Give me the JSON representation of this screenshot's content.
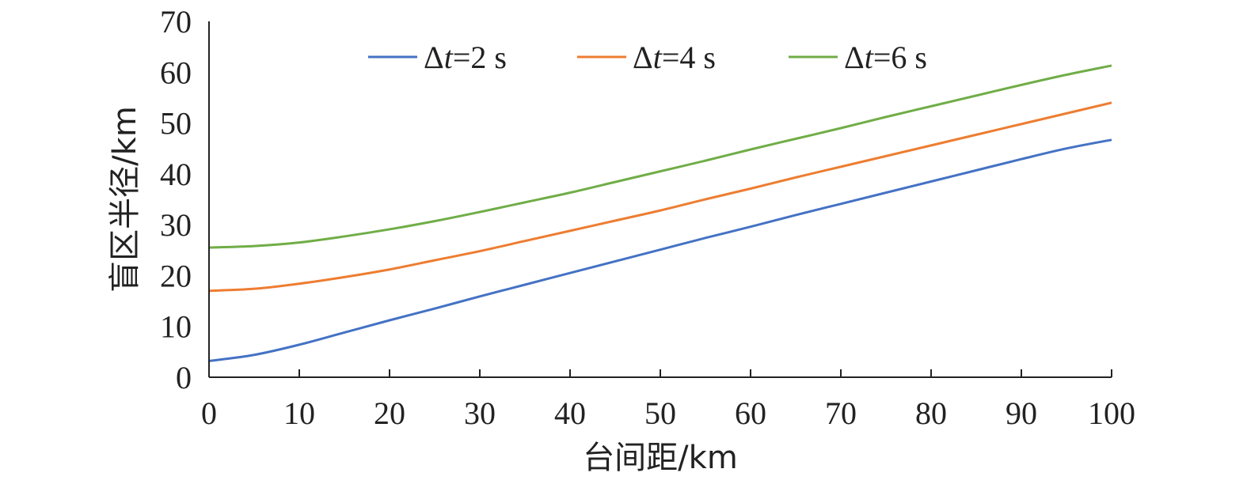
{
  "chart_data": {
    "type": "line",
    "xlabel": "台间距/km",
    "ylabel": "盲区半径/km",
    "xlim": [
      0,
      100
    ],
    "ylim": [
      0,
      70
    ],
    "x_ticks": [
      0,
      10,
      20,
      30,
      40,
      50,
      60,
      70,
      80,
      90,
      100
    ],
    "y_ticks": [
      0,
      10,
      20,
      30,
      40,
      50,
      60,
      70
    ],
    "grid": false,
    "legend_position": "top",
    "x": [
      0,
      5,
      10,
      15,
      20,
      25,
      30,
      35,
      40,
      45,
      50,
      55,
      60,
      65,
      70,
      75,
      80,
      85,
      90,
      95,
      100
    ],
    "series": [
      {
        "name": "Δt=2 s",
        "legend_prefix": "Δ",
        "legend_italic": "t",
        "legend_suffix": "=2 s",
        "color": "#4472C4",
        "values": [
          3.2,
          4.4,
          6.4,
          8.8,
          11.2,
          13.5,
          15.9,
          18.2,
          20.5,
          22.8,
          25.1,
          27.4,
          29.6,
          31.9,
          34.1,
          36.3,
          38.5,
          40.7,
          42.9,
          45.0,
          46.7
        ]
      },
      {
        "name": "Δt=4 s",
        "legend_prefix": "Δ",
        "legend_italic": "t",
        "legend_suffix": "=4 s",
        "color": "#ED7D31",
        "values": [
          17.0,
          17.4,
          18.4,
          19.7,
          21.2,
          23.0,
          24.8,
          26.8,
          28.8,
          30.8,
          32.8,
          35.0,
          37.1,
          39.3,
          41.4,
          43.5,
          45.6,
          47.7,
          49.8,
          51.9,
          54.0
        ]
      },
      {
        "name": "Δt=6 s",
        "legend_prefix": "Δ",
        "legend_italic": "t",
        "legend_suffix": "=6 s",
        "color": "#70AD47",
        "values": [
          25.5,
          25.8,
          26.5,
          27.7,
          29.1,
          30.7,
          32.5,
          34.4,
          36.3,
          38.4,
          40.5,
          42.6,
          44.8,
          46.9,
          49.0,
          51.2,
          53.3,
          55.4,
          57.5,
          59.5,
          61.3
        ]
      }
    ]
  }
}
